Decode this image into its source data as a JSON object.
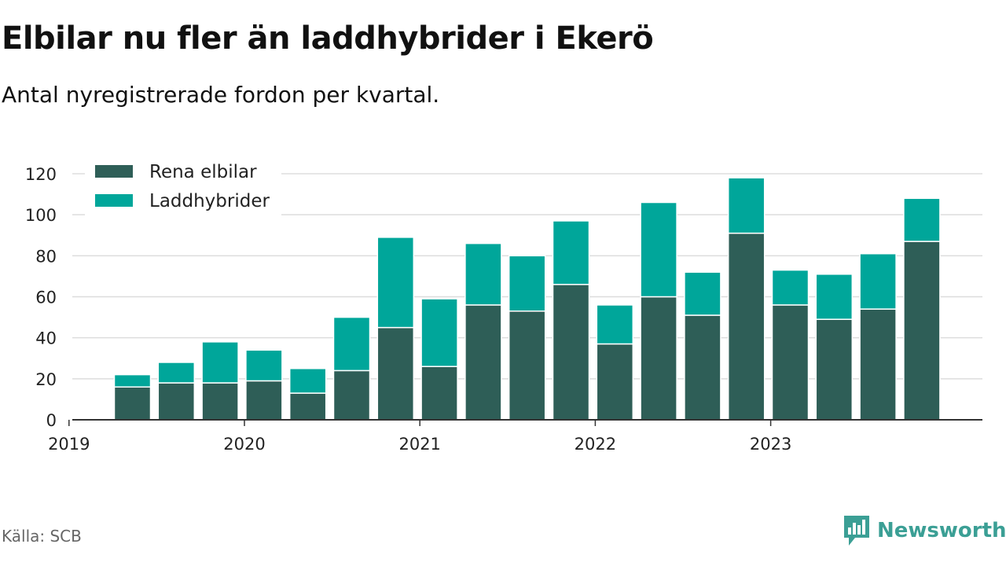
{
  "title": "Elbilar nu fler än laddhybrider i Ekerö",
  "subtitle": "Antal nyregistrerade fordon per kvartal.",
  "source": "Källa: SCB",
  "brand": {
    "name": "Newsworthy",
    "color": "#3b9f95",
    "icon": "chat-bar-chart-icon"
  },
  "chart_data": {
    "type": "bar",
    "stacked": true,
    "title": "Elbilar nu fler än laddhybrider i Ekerö",
    "xlabel": "",
    "ylabel": "",
    "ylim": [
      0,
      120
    ],
    "yticks": [
      0,
      20,
      40,
      60,
      80,
      100,
      120
    ],
    "grid": true,
    "legend_position": "top-left",
    "x_tick_labels": [
      "2019",
      "2020",
      "2021",
      "2022",
      "2023"
    ],
    "categories": [
      "2019 Q2",
      "2019 Q3",
      "2019 Q4",
      "2020 Q1",
      "2020 Q2",
      "2020 Q3",
      "2020 Q4",
      "2021 Q1",
      "2021 Q2",
      "2021 Q3",
      "2021 Q4",
      "2022 Q1",
      "2022 Q2",
      "2022 Q3",
      "2022 Q4",
      "2023 Q1",
      "2023 Q2",
      "2023 Q3",
      "2023 Q4"
    ],
    "series": [
      {
        "name": "Rena elbilar",
        "color": "#2e5e57",
        "values": [
          16,
          18,
          18,
          19,
          13,
          24,
          45,
          26,
          56,
          53,
          66,
          37,
          60,
          51,
          91,
          56,
          49,
          54,
          87
        ]
      },
      {
        "name": "Laddhybrider",
        "color": "#00a69a",
        "values": [
          6,
          10,
          20,
          15,
          12,
          26,
          44,
          33,
          30,
          27,
          31,
          19,
          46,
          21,
          27,
          17,
          22,
          27,
          21
        ]
      }
    ]
  }
}
